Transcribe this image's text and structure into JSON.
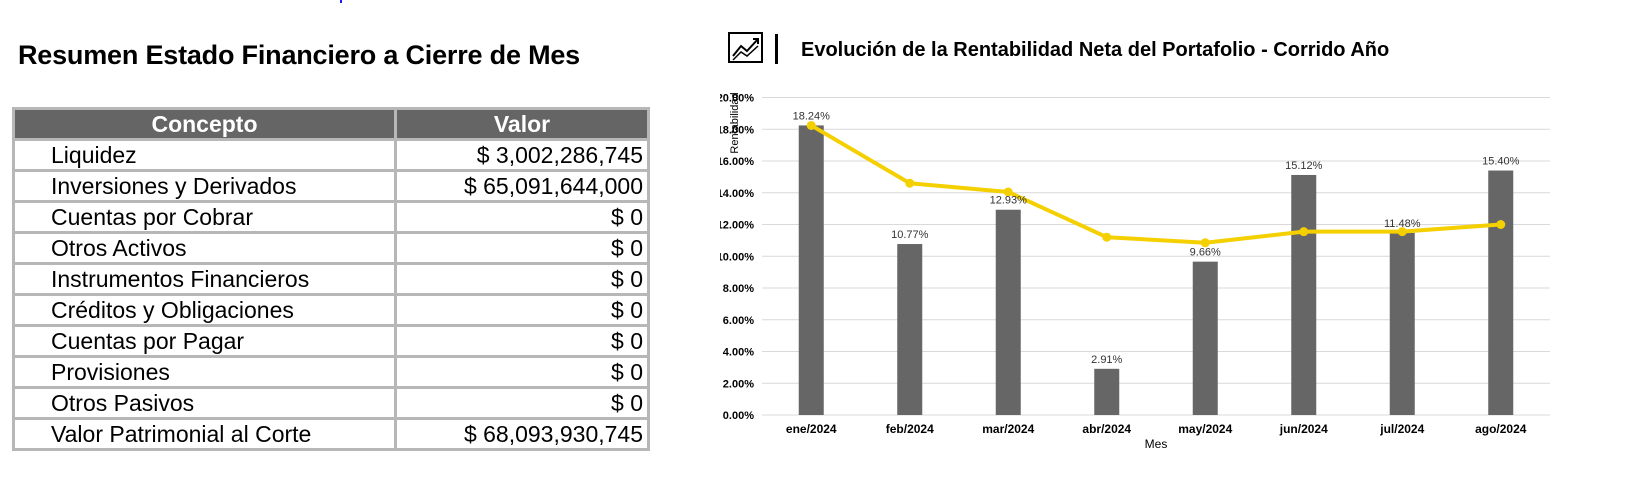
{
  "left_panel": {
    "title": "Resumen Estado Financiero a Cierre de Mes",
    "table": {
      "headers": [
        "Concepto",
        "Valor"
      ],
      "rows": [
        {
          "concept": "Liquidez",
          "value": "$ 3,002,286,745"
        },
        {
          "concept": "Inversiones y Derivados",
          "value": "$ 65,091,644,000"
        },
        {
          "concept": "Cuentas por Cobrar",
          "value": "$ 0"
        },
        {
          "concept": "Otros Activos",
          "value": "$ 0"
        },
        {
          "concept": "Instrumentos Financieros",
          "value": "$ 0"
        },
        {
          "concept": "Créditos y Obligaciones",
          "value": "$ 0"
        },
        {
          "concept": "Cuentas por Pagar",
          "value": "$ 0"
        },
        {
          "concept": "Provisiones",
          "value": "$ 0"
        },
        {
          "concept": "Otros Pasivos",
          "value": "$ 0"
        },
        {
          "concept": "Valor Patrimonial al Corte",
          "value": "$ 68,093,930,745"
        }
      ]
    }
  },
  "right_panel": {
    "icon": "chart-trend-icon",
    "title": "Evolución de la Rentabilidad Neta del Portafolio - Corrido Año"
  },
  "colors": {
    "header_bg": "#656565",
    "table_border": "#b7b7b7",
    "bar": "#666666",
    "line": "#f5d000"
  },
  "chart_data": {
    "type": "bar",
    "categories": [
      "ene/2024",
      "feb/2024",
      "mar/2024",
      "abr/2024",
      "may/2024",
      "jun/2024",
      "jul/2024",
      "ago/2024"
    ],
    "series": [
      {
        "values": [
          18.24,
          10.77,
          12.93,
          2.91,
          9.66,
          15.12,
          11.48,
          15.4
        ],
        "type": "bar"
      },
      {
        "values": [
          18.24,
          14.6,
          14.05,
          11.2,
          10.85,
          11.55,
          11.55,
          12.0
        ],
        "type": "line"
      }
    ],
    "bar_labels": [
      "18.24%",
      "10.77%",
      "12.93%",
      "2.91%",
      "9.66%",
      "15.12%",
      "11.48%",
      "15.40%"
    ],
    "y_ticks": [
      "0.00%",
      "2.00%",
      "4.00%",
      "6.00%",
      "8.00%",
      "10.00%",
      "12.00%",
      "14.00%",
      "16.00%",
      "18.00%",
      "20.00%"
    ],
    "xlabel": "Mes",
    "ylabel": "Rentabilidad",
    "ylim": [
      0,
      20
    ],
    "grid": true,
    "legend": "none"
  }
}
